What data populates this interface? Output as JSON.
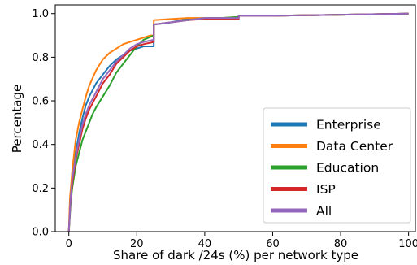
{
  "chart_data": {
    "type": "line",
    "xlabel": "Share of dark /24s (%) per network type",
    "ylabel": "Percentage",
    "xlim": [
      -4,
      102
    ],
    "ylim": [
      0,
      1.04
    ],
    "xticks": [
      0,
      20,
      40,
      60,
      80,
      100
    ],
    "yticks": [
      0.0,
      0.2,
      0.4,
      0.6,
      0.8,
      1.0
    ],
    "xtick_labels": [
      "0",
      "20",
      "40",
      "60",
      "80",
      "100"
    ],
    "ytick_labels": [
      "0.0",
      "0.2",
      "0.4",
      "0.6",
      "0.8",
      "1.0"
    ],
    "grid": false,
    "legend_position": "lower-right",
    "series": [
      {
        "name": "Enterprise",
        "color": "#1f77b4",
        "points": [
          [
            0,
            0
          ],
          [
            0.5,
            0.15
          ],
          [
            1,
            0.25
          ],
          [
            2,
            0.36
          ],
          [
            3,
            0.45
          ],
          [
            4,
            0.52
          ],
          [
            5,
            0.58
          ],
          [
            6,
            0.62
          ],
          [
            8,
            0.68
          ],
          [
            10,
            0.72
          ],
          [
            12,
            0.76
          ],
          [
            14,
            0.79
          ],
          [
            16,
            0.81
          ],
          [
            18,
            0.83
          ],
          [
            20,
            0.84
          ],
          [
            22,
            0.85
          ],
          [
            25,
            0.85
          ],
          [
            25,
            0.95
          ],
          [
            28,
            0.955
          ],
          [
            30,
            0.96
          ],
          [
            33,
            0.97
          ],
          [
            35,
            0.975
          ],
          [
            40,
            0.98
          ],
          [
            45,
            0.98
          ],
          [
            50,
            0.98
          ],
          [
            50,
            0.99
          ],
          [
            60,
            0.99
          ],
          [
            80,
            0.995
          ],
          [
            100,
            1.0
          ]
        ]
      },
      {
        "name": "Data Center",
        "color": "#ff7f0e",
        "points": [
          [
            0,
            0
          ],
          [
            0.3,
            0.15
          ],
          [
            1,
            0.28
          ],
          [
            2,
            0.42
          ],
          [
            3,
            0.5
          ],
          [
            4,
            0.56
          ],
          [
            5,
            0.62
          ],
          [
            6,
            0.67
          ],
          [
            8,
            0.74
          ],
          [
            10,
            0.79
          ],
          [
            12,
            0.82
          ],
          [
            14,
            0.84
          ],
          [
            16,
            0.86
          ],
          [
            18,
            0.87
          ],
          [
            20,
            0.88
          ],
          [
            22,
            0.89
          ],
          [
            24,
            0.9
          ],
          [
            25,
            0.9
          ],
          [
            25,
            0.97
          ],
          [
            30,
            0.975
          ],
          [
            35,
            0.98
          ],
          [
            40,
            0.98
          ],
          [
            45,
            0.98
          ],
          [
            50,
            0.985
          ],
          [
            50,
            0.99
          ],
          [
            60,
            0.99
          ],
          [
            80,
            0.995
          ],
          [
            100,
            1.0
          ]
        ]
      },
      {
        "name": "Education",
        "color": "#2ca02c",
        "points": [
          [
            0,
            0
          ],
          [
            0.5,
            0.12
          ],
          [
            1,
            0.2
          ],
          [
            2,
            0.3
          ],
          [
            3,
            0.36
          ],
          [
            4,
            0.42
          ],
          [
            5,
            0.46
          ],
          [
            6,
            0.5
          ],
          [
            7,
            0.54
          ],
          [
            8,
            0.57
          ],
          [
            10,
            0.62
          ],
          [
            12,
            0.67
          ],
          [
            14,
            0.73
          ],
          [
            16,
            0.77
          ],
          [
            18,
            0.81
          ],
          [
            20,
            0.85
          ],
          [
            22,
            0.88
          ],
          [
            25,
            0.9
          ],
          [
            25,
            0.95
          ],
          [
            30,
            0.96
          ],
          [
            35,
            0.97
          ],
          [
            40,
            0.98
          ],
          [
            45,
            0.98
          ],
          [
            50,
            0.985
          ],
          [
            50,
            0.99
          ],
          [
            60,
            0.99
          ],
          [
            80,
            0.995
          ],
          [
            100,
            1.0
          ]
        ]
      },
      {
        "name": "ISP",
        "color": "#d62728",
        "points": [
          [
            0,
            0
          ],
          [
            0.5,
            0.14
          ],
          [
            1,
            0.22
          ],
          [
            2,
            0.33
          ],
          [
            3,
            0.4
          ],
          [
            4,
            0.47
          ],
          [
            5,
            0.52
          ],
          [
            6,
            0.56
          ],
          [
            8,
            0.62
          ],
          [
            10,
            0.68
          ],
          [
            12,
            0.72
          ],
          [
            14,
            0.77
          ],
          [
            16,
            0.8
          ],
          [
            18,
            0.83
          ],
          [
            20,
            0.85
          ],
          [
            22,
            0.86
          ],
          [
            25,
            0.87
          ],
          [
            25,
            0.95
          ],
          [
            30,
            0.96
          ],
          [
            35,
            0.97
          ],
          [
            40,
            0.975
          ],
          [
            45,
            0.975
          ],
          [
            50,
            0.975
          ],
          [
            50,
            0.99
          ],
          [
            60,
            0.99
          ],
          [
            80,
            0.995
          ],
          [
            100,
            1.0
          ]
        ]
      },
      {
        "name": "All",
        "color": "#9467bd",
        "points": [
          [
            0,
            0
          ],
          [
            0.5,
            0.15
          ],
          [
            1,
            0.24
          ],
          [
            2,
            0.34
          ],
          [
            3,
            0.42
          ],
          [
            4,
            0.49
          ],
          [
            5,
            0.54
          ],
          [
            6,
            0.58
          ],
          [
            8,
            0.64
          ],
          [
            10,
            0.7
          ],
          [
            12,
            0.74
          ],
          [
            14,
            0.78
          ],
          [
            16,
            0.81
          ],
          [
            18,
            0.84
          ],
          [
            20,
            0.86
          ],
          [
            22,
            0.87
          ],
          [
            25,
            0.88
          ],
          [
            25,
            0.95
          ],
          [
            30,
            0.96
          ],
          [
            35,
            0.97
          ],
          [
            40,
            0.98
          ],
          [
            45,
            0.98
          ],
          [
            50,
            0.98
          ],
          [
            50,
            0.99
          ],
          [
            60,
            0.99
          ],
          [
            80,
            0.995
          ],
          [
            100,
            1.0
          ]
        ]
      }
    ]
  }
}
